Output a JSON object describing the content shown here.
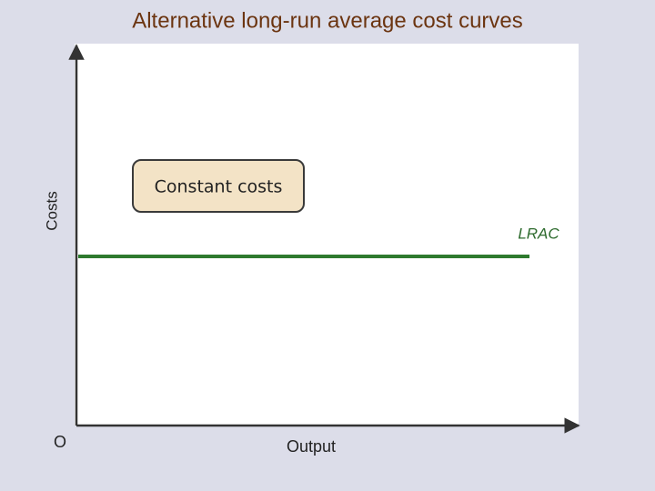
{
  "title": "Alternative long-run average cost curves",
  "y_axis_label": "Costs",
  "x_axis_label": "Output",
  "origin_label": "O",
  "annotation": "Constant costs",
  "curve_label": "LRAC"
}
